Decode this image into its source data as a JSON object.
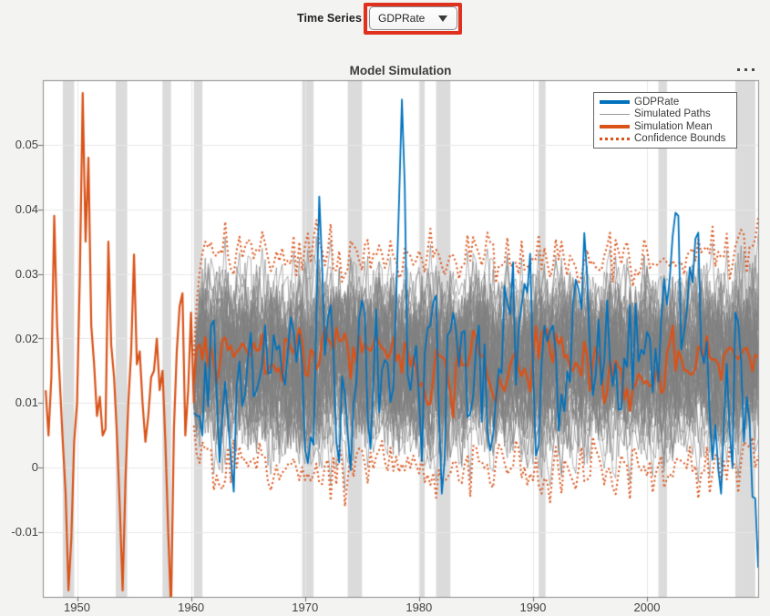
{
  "controls": {
    "time_series_label": "Time Series",
    "dropdown_value": "GDPRate",
    "annotation_color": "#E0301E"
  },
  "toolbar": {
    "options_icon": "ellipsis"
  },
  "chart_data": {
    "type": "line",
    "title": "Model Simulation",
    "xlabel": "",
    "ylabel": "",
    "xlim": [
      1947,
      2009.75
    ],
    "ylim": [
      -0.02,
      0.06
    ],
    "x_ticks": [
      1950,
      1960,
      1970,
      1980,
      1990,
      2000
    ],
    "y_ticks": [
      -0.01,
      0,
      0.01,
      0.02,
      0.03,
      0.04,
      0.05
    ],
    "grid": true,
    "legend_position": "top-right",
    "colors": {
      "gdprate": "#0072BD",
      "paths": "rgba(128,128,128,0.62)",
      "mean": "#D95319",
      "bounds": "#D95319",
      "recession_band": "#DBDBDB",
      "grid": "#E8E8E8",
      "axis": "#8C8C8C",
      "tick": "#6f6f6f",
      "plot_bg": "#FFFFFF",
      "fig_bg": "#F3F3F2"
    },
    "legend": [
      {
        "label": "GDPRate",
        "type": "solid-thick",
        "color": "#0072BD"
      },
      {
        "label": "Simulated Paths",
        "type": "solid-thin",
        "color": "#9A9A9A"
      },
      {
        "label": "Simulation Mean",
        "type": "solid-thick",
        "color": "#D95319"
      },
      {
        "label": "Confidence Bounds",
        "type": "dotted",
        "color": "#D95319"
      }
    ],
    "recession_bands": [
      [
        1948.75,
        1949.75
      ],
      [
        1953.4,
        1954.4
      ],
      [
        1957.5,
        1958.25
      ],
      [
        1960.25,
        1961.0
      ],
      [
        1969.75,
        1970.75
      ],
      [
        1973.75,
        1975.0
      ],
      [
        1980.0,
        1980.5
      ],
      [
        1981.5,
        1982.75
      ],
      [
        1990.5,
        1991.1
      ],
      [
        2001.0,
        2001.75
      ],
      [
        2007.75,
        2009.5
      ]
    ],
    "historical_series": {
      "name": "GDPRate (pre-simulation history)",
      "color": "#D95319",
      "x_start": 1947.25,
      "dx": 0.25,
      "values": [
        0.012,
        0.005,
        0.014,
        0.039,
        0.022,
        0.013,
        0.004,
        -0.004,
        -0.019,
        -0.011,
        0.004,
        0.01,
        0.03,
        0.058,
        0.035,
        0.048,
        0.022,
        0.016,
        0.008,
        0.011,
        0.005,
        0.006,
        0.035,
        0.019,
        0.014,
        0.005,
        -0.006,
        -0.019,
        -0.002,
        0.01,
        0.018,
        0.033,
        0.016,
        0.018,
        0.01,
        0.004,
        0.008,
        0.014,
        0.015,
        0.02,
        0.012,
        0.015,
        0.004,
        -0.01,
        -0.022,
        0.006,
        0.018,
        0.025,
        0.027,
        0.005,
        0.012,
        0.024,
        0.01
      ]
    },
    "simulation": {
      "start": 1960.25,
      "end": 2009.75,
      "dx": 0.25,
      "n_paths": 60,
      "seed": 1234,
      "mean": 0.0165,
      "ar": 0.55,
      "innovation": 0.013,
      "start_value": 0.012,
      "start_spread": 0.006,
      "clamp": [
        -0.016,
        0.052
      ],
      "bound_offset": 0.0025,
      "mean_subset": 6
    },
    "gdprate_observed": {
      "seed": 77,
      "mean": 0.0175,
      "ar": 0.5,
      "innovation": 0.017,
      "clamp": [
        -0.016,
        0.0575
      ],
      "anchors": [
        [
          1960.5,
          0.008
        ],
        [
          1961.0,
          0.005
        ],
        [
          1971.25,
          0.042
        ],
        [
          1978.5,
          0.057
        ],
        [
          1979.25,
          0.012
        ],
        [
          1980.25,
          0.001
        ],
        [
          1981.0,
          0.022
        ],
        [
          1982.0,
          -0.004
        ],
        [
          1983.0,
          0.024
        ],
        [
          2008.5,
          0.004
        ],
        [
          2009.25,
          -0.0045
        ],
        [
          2009.75,
          -0.0155
        ]
      ]
    }
  }
}
